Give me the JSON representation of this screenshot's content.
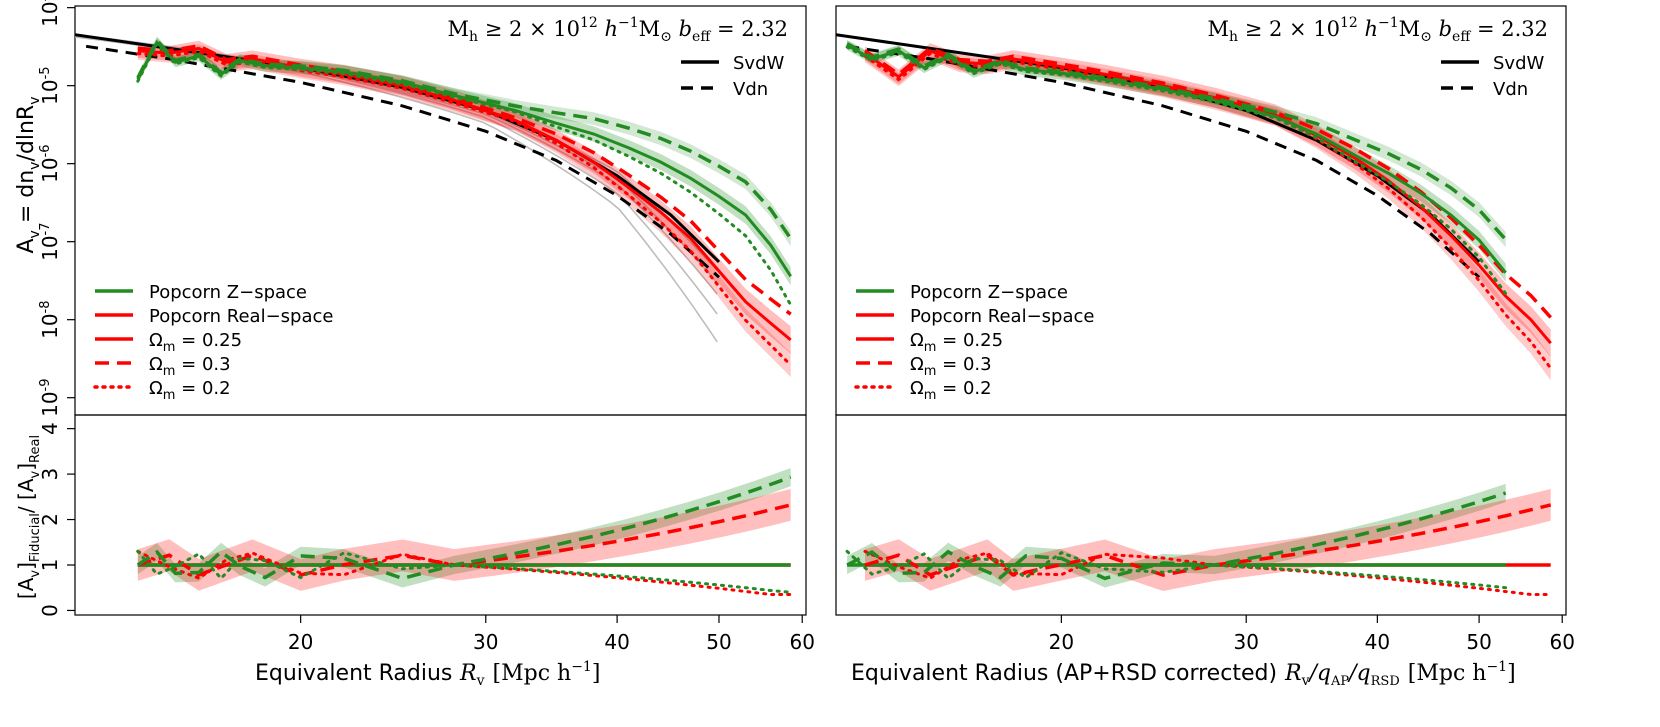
{
  "chart_data": [
    {
      "type": "line",
      "panel": "left",
      "title": "M_h ≥ 2 × 10^12 h^-1 M_⊙  b_eff = 2.32",
      "xlabel": "Equivalent Radius",
      "xlabel_math": "R_v [Mpc h^-1]",
      "ylabel_top": "A_v = dn_v/dlnR_v",
      "ylabel_bottom": "[A_v]_Fiducial / [A_v]_Real",
      "x_scale": "log",
      "y_scale_top": "log",
      "xlim": [
        12.2,
        60.5
      ],
      "ylim_top": [
        6e-10,
        0.000105
      ],
      "ylim_bottom": [
        -0.1,
        4.3
      ],
      "x_ticks": [
        20,
        30,
        40,
        50,
        60
      ],
      "y_ticks_top": [
        "10^-9",
        "10^-8",
        "10^-7",
        "10^-6",
        "10^-5",
        "10^-4"
      ],
      "y_ticks_bottom": [
        0,
        1,
        2,
        3,
        4
      ],
      "legend_top_right": [
        "SvdW",
        "Vdn"
      ],
      "legend_bottom_left": [
        "Popcorn Z−space",
        "Popcorn Real−space",
        "Ωm = 0.25",
        "Ωm = 0.3",
        "Ωm = 0.2"
      ],
      "series": [
        {
          "name": "SvdW",
          "color": "#000000",
          "style": "solid",
          "x": [
            12.2,
            15,
            20,
            25,
            30,
            35,
            40,
            45,
            50
          ],
          "y": [
            4.5e-05,
            3e-05,
            1.7e-05,
            9.5e-06,
            4.8e-06,
            2e-06,
            7e-07,
            2.2e-07,
            5.5e-08
          ]
        },
        {
          "name": "Vdn",
          "color": "#000000",
          "style": "dashed",
          "x": [
            12.5,
            15,
            20,
            25,
            30,
            35,
            40,
            45,
            50
          ],
          "y": [
            3.2e-05,
            2.2e-05,
            1.1e-05,
            5.5e-06,
            2.6e-06,
            1.1e-06,
            3.9e-07,
            1.25e-07,
            3.5e-08
          ]
        },
        {
          "name": "Popcorn Z−space",
          "color": "#228b22",
          "style": "solid",
          "x": [
            14.0,
            14.6,
            15.2,
            16.0,
            16.8,
            17.5,
            18.5,
            20,
            22,
            25,
            28,
            32,
            35,
            38,
            41,
            44,
            47,
            50,
            53,
            56,
            58.5
          ],
          "y": [
            1.2e-05,
            3.6e-05,
            2e-05,
            2.4e-05,
            1.4e-05,
            2.1e-05,
            1.8e-05,
            1.7e-05,
            1.5e-05,
            1.1e-05,
            7.5e-06,
            4.8e-06,
            3.3e-06,
            2.4e-06,
            1.6e-06,
            1.05e-06,
            6.5e-07,
            3.8e-07,
            2.2e-07,
            9e-08,
            3.6e-08
          ]
        },
        {
          "name": "Popcorn Real−space",
          "color": "#ff0000",
          "style": "solid",
          "x": [
            14.0,
            15,
            16,
            17,
            18,
            20,
            22,
            25,
            28,
            32,
            35,
            38,
            41,
            44,
            47,
            50,
            53,
            56,
            58.5
          ],
          "y": [
            2.8e-05,
            2.6e-05,
            3e-05,
            2e-05,
            2.2e-05,
            1.7e-05,
            1.4e-05,
            1e-05,
            6.5e-06,
            3.6e-06,
            2e-06,
            1.05e-06,
            5e-07,
            2.4e-07,
            1.1e-07,
            4.2e-08,
            1.7e-08,
            9e-09,
            5.5e-09
          ]
        }
      ]
    },
    {
      "type": "line",
      "panel": "right",
      "title": "M_h ≥ 2 × 10^12 h^-1 M_⊙  b_eff = 2.32",
      "xlabel": "Equivalent Radius (AP+RSD corrected)",
      "xlabel_math": "R_v/q_AP/q_RSD [Mpc h^-1]",
      "x_scale": "log",
      "xlim": [
        12.2,
        60.5
      ],
      "x_ticks": [
        20,
        30,
        40,
        50,
        60
      ],
      "legend_top_right": [
        "SvdW",
        "Vdn"
      ],
      "legend_bottom_left": [
        "Popcorn Z−space",
        "Popcorn Real−space",
        "Ωm = 0.25",
        "Ωm = 0.3",
        "Ωm = 0.2"
      ],
      "series": [
        {
          "name": "SvdW",
          "color": "#000000",
          "style": "solid",
          "x": [
            12.2,
            15,
            20,
            25,
            30,
            35,
            40,
            45,
            50
          ],
          "y": [
            4.5e-05,
            3e-05,
            1.7e-05,
            9.5e-06,
            4.8e-06,
            2e-06,
            7e-07,
            2.2e-07,
            5.5e-08
          ]
        },
        {
          "name": "Vdn",
          "color": "#000000",
          "style": "dashed",
          "x": [
            12.5,
            15,
            20,
            25,
            30,
            35,
            40,
            45,
            50
          ],
          "y": [
            3.2e-05,
            2.2e-05,
            1.1e-05,
            5.5e-06,
            2.6e-06,
            1.1e-06,
            3.9e-07,
            1.25e-07,
            3.5e-08
          ]
        },
        {
          "name": "Popcorn Z−space",
          "color": "#228b22",
          "style": "solid",
          "x": [
            12.5,
            13.2,
            14.0,
            14.8,
            15.6,
            16.5,
            17.5,
            18.5,
            20,
            22,
            25,
            28,
            32,
            35,
            38,
            41,
            44,
            47,
            50,
            53
          ],
          "y": [
            3.3e-05,
            2.2e-05,
            2.8e-05,
            1.7e-05,
            2.4e-05,
            1.5e-05,
            2e-05,
            1.6e-05,
            1.45e-05,
            1.2e-05,
            9e-06,
            6.5e-06,
            4e-06,
            2.4e-06,
            1.3e-06,
            7.5e-07,
            4.2e-07,
            2.2e-07,
            1.05e-07,
            4e-08
          ]
        },
        {
          "name": "Popcorn Real−space",
          "color": "#ff0000",
          "style": "solid",
          "x": [
            13.0,
            14,
            15,
            16,
            17,
            18,
            20,
            22,
            25,
            28,
            32,
            35,
            38,
            41,
            44,
            47,
            50,
            53,
            56,
            58.5
          ],
          "y": [
            2.6e-05,
            1.3e-05,
            2.8e-05,
            2e-05,
            1.9e-05,
            2.2e-05,
            1.75e-05,
            1.4e-05,
            1e-05,
            7e-06,
            4.2e-06,
            2.3e-06,
            1.2e-06,
            6e-07,
            2.8e-07,
            1.2e-07,
            5e-08,
            2e-08,
            1e-08,
            5e-09
          ]
        }
      ]
    }
  ],
  "labels": {
    "title_prefix": "M",
    "title_sub_h": "h",
    "title_geq": " ≥ 2 × 10",
    "title_sup12": "12",
    "title_h": " h",
    "title_supm1": "−1",
    "title_M": "M",
    "title_sun": "⊙",
    "title_b": " b",
    "title_eff": "eff",
    "title_val": " = 2.32",
    "legend_svdw": "SvdW",
    "legend_vdn": "Vdn",
    "legend_z": "Popcorn Z−space",
    "legend_real": "Popcorn Real−space",
    "legend_om_a": "= 0.25",
    "legend_om_b": "= 0.3",
    "legend_om_c": "= 0.2",
    "omega": "Ω",
    "omega_sub": "m",
    "xlabel_left": "Equivalent Radius",
    "xlabel_right": "Equivalent Radius (AP+RSD corrected)",
    "xmath_left": "R",
    "xmath_sub_v": "v",
    "xmath_unit": "[Mpc h",
    "xmath_unit_sup": "−1",
    "xmath_close": "]",
    "xmath_right_a": "R",
    "xmath_right_b": "/q",
    "xmath_right_ap": "AP",
    "xmath_right_c": "/q",
    "xmath_right_rsd": "RSD",
    "ylabel_top_a": "A",
    "ylabel_top_v": "v",
    "ylabel_top_b": " = dn",
    "ylabel_top_c": "/dlnR",
    "ylabel_bot_a": "[A",
    "ylabel_bot_fid": "Fiducial",
    "ylabel_bot_b": "/ [A",
    "ylabel_bot_real": "Real",
    "ytick_exp": [
      "-9",
      "-8",
      "-7",
      "-6",
      "-5",
      "-4"
    ],
    "ytick_base": "10",
    "ytick_bottom": [
      "0",
      "1",
      "2",
      "3",
      "4"
    ],
    "xtick": [
      "20",
      "30",
      "40",
      "50",
      "60"
    ]
  }
}
